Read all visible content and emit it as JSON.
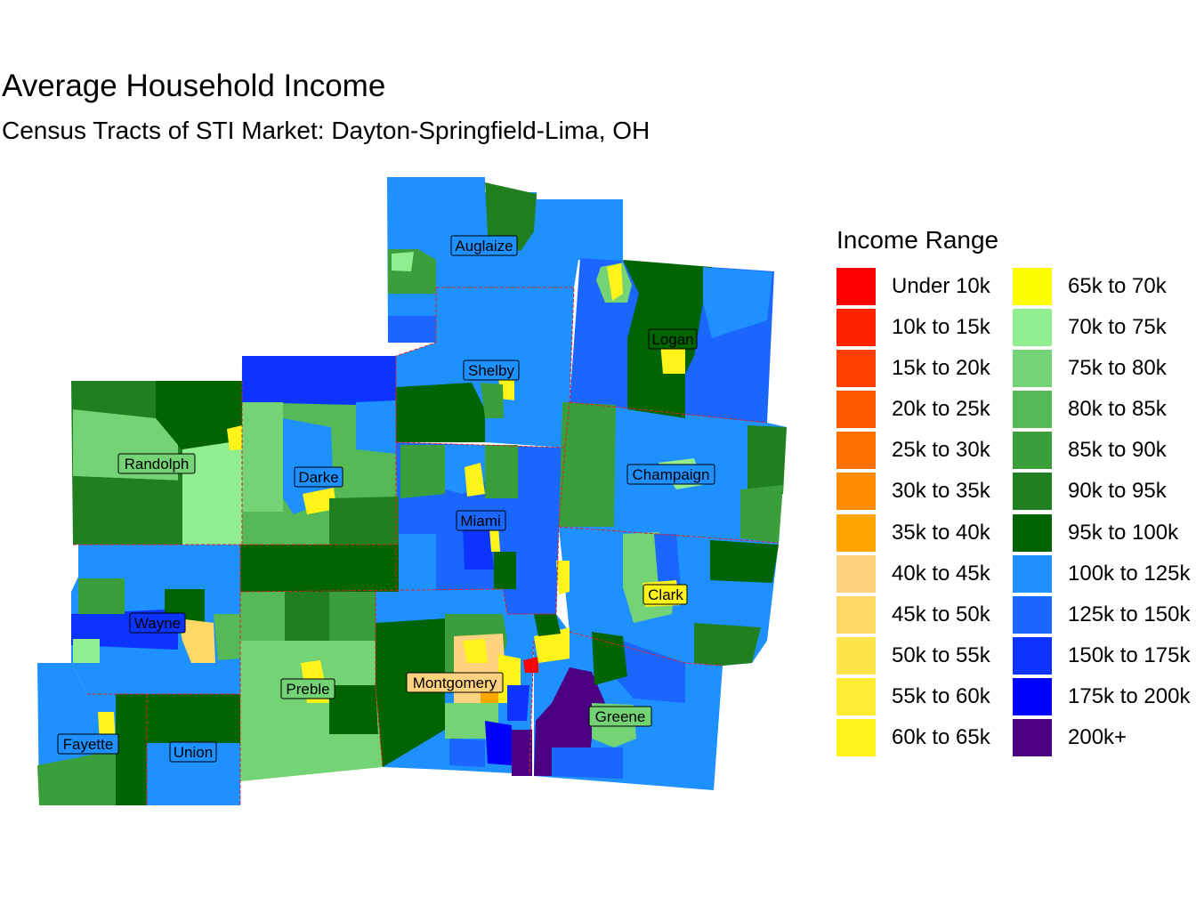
{
  "title": "Average Household Income",
  "subtitle": "Census Tracts of STI Market: Dayton-Springfield-Lima, OH",
  "legend": {
    "title": "Income Range",
    "items": [
      {
        "label": "Under 10k",
        "color": "#ff0000"
      },
      {
        "label": "10k to 15k",
        "color": "#ff2200"
      },
      {
        "label": "15k to 20k",
        "color": "#ff3f00"
      },
      {
        "label": "20k to 25k",
        "color": "#ff5900"
      },
      {
        "label": "25k to 30k",
        "color": "#ff7200"
      },
      {
        "label": "30k to 35k",
        "color": "#ff8c00"
      },
      {
        "label": "35k to 40k",
        "color": "#ffa600"
      },
      {
        "label": "40k to 45k",
        "color": "#ffd27f"
      },
      {
        "label": "45k to 50k",
        "color": "#ffd966"
      },
      {
        "label": "50k to 55k",
        "color": "#ffe54a"
      },
      {
        "label": "55k to 60k",
        "color": "#ffec33"
      },
      {
        "label": "60k to 65k",
        "color": "#fff41a"
      },
      {
        "label": "65k to 70k",
        "color": "#ffff00"
      },
      {
        "label": "70k to 75k",
        "color": "#90ee90"
      },
      {
        "label": "75k to 80k",
        "color": "#74d374"
      },
      {
        "label": "80k to 85k",
        "color": "#55b955"
      },
      {
        "label": "85k to 90k",
        "color": "#3a9e3a"
      },
      {
        "label": "90k to 95k",
        "color": "#208020"
      },
      {
        "label": "95k to 100k",
        "color": "#006400"
      },
      {
        "label": "100k to 125k",
        "color": "#1e90ff"
      },
      {
        "label": "125k to 150k",
        "color": "#1a66ff"
      },
      {
        "label": "150k to 175k",
        "color": "#0d33ff"
      },
      {
        "label": "175k to 200k",
        "color": "#0000ff"
      },
      {
        "label": "200k+",
        "color": "#4b0082"
      }
    ]
  },
  "counties": [
    {
      "name": "Auglaize"
    },
    {
      "name": "Logan"
    },
    {
      "name": "Shelby"
    },
    {
      "name": "Randolph"
    },
    {
      "name": "Darke"
    },
    {
      "name": "Champaign"
    },
    {
      "name": "Miami"
    },
    {
      "name": "Clark"
    },
    {
      "name": "Wayne"
    },
    {
      "name": "Montgomery"
    },
    {
      "name": "Preble"
    },
    {
      "name": "Greene"
    },
    {
      "name": "Fayette"
    },
    {
      "name": "Union"
    }
  ]
}
